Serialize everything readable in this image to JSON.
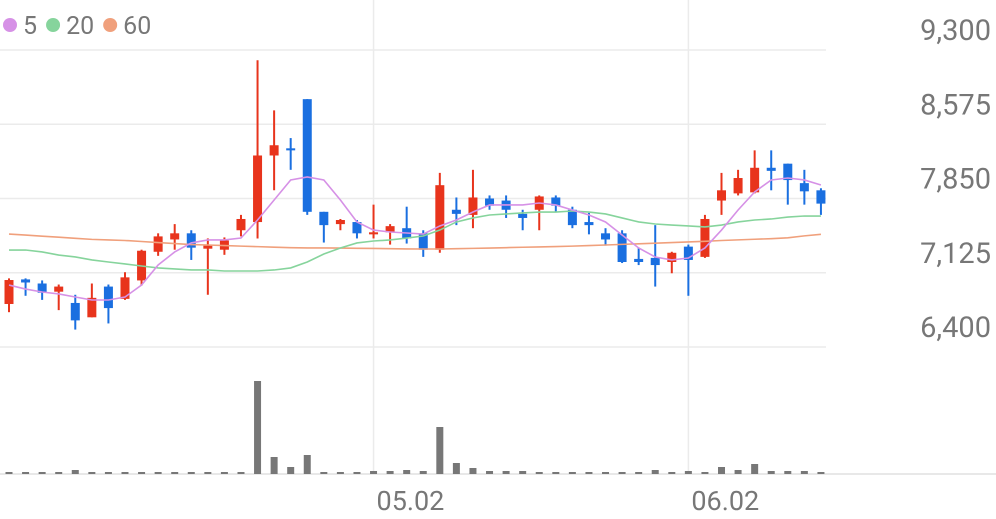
{
  "chart_data": {
    "type": "candlestick",
    "categories": [
      null,
      null,
      null,
      null,
      null,
      null,
      null,
      null,
      null,
      null,
      null,
      null,
      null,
      null,
      null,
      null,
      null,
      null,
      null,
      null,
      null,
      null,
      "05.02",
      null,
      null,
      null,
      null,
      null,
      null,
      null,
      null,
      null,
      null,
      null,
      null,
      null,
      null,
      null,
      null,
      null,
      null,
      "06.02",
      null,
      null,
      null,
      null,
      null,
      null,
      null,
      null
    ],
    "open": [
      6820,
      7060,
      7020,
      6940,
      6830,
      6690,
      6990,
      6870,
      7050,
      7330,
      7450,
      7510,
      7360,
      7350,
      7540,
      7620,
      8270,
      8340,
      8820,
      7720,
      7600,
      7620,
      7500,
      7520,
      7560,
      7510,
      7350,
      7740,
      7690,
      7850,
      7830,
      7700,
      7740,
      7860,
      7740,
      7620,
      7510,
      7510,
      7260,
      7270,
      7230,
      7380,
      7280,
      7830,
      7900,
      7910,
      8150,
      8190,
      8000,
      7930
    ],
    "high": [
      7070,
      7070,
      7050,
      7010,
      6910,
      7020,
      7010,
      7130,
      7350,
      7510,
      7600,
      7540,
      7460,
      7470,
      7690,
      9200,
      8710,
      8440,
      8820,
      7720,
      7650,
      7640,
      7790,
      7600,
      7770,
      7540,
      8100,
      7860,
      8130,
      7880,
      7880,
      7740,
      7880,
      7880,
      7770,
      7710,
      7560,
      7540,
      7370,
      7590,
      7330,
      7400,
      7690,
      8100,
      8130,
      8320,
      8320,
      8190,
      8130,
      7950
    ],
    "low": [
      6740,
      6900,
      6860,
      6760,
      6570,
      6690,
      6630,
      6860,
      7000,
      7290,
      7350,
      7250,
      6910,
      7300,
      7480,
      7460,
      7930,
      8130,
      7690,
      7420,
      7540,
      7460,
      7460,
      7400,
      7410,
      7280,
      7320,
      7590,
      7560,
      7740,
      7660,
      7540,
      7540,
      7720,
      7560,
      7500,
      7390,
      7220,
      7200,
      6990,
      7120,
      6900,
      7270,
      7690,
      7880,
      7900,
      7930,
      7790,
      7790,
      7690
    ],
    "close": [
      7054,
      7030,
      6930,
      6990,
      6660,
      6880,
      6780,
      7080,
      7340,
      7480,
      7510,
      7370,
      7390,
      7440,
      7650,
      8270,
      8370,
      8320,
      7720,
      7590,
      7640,
      7510,
      7520,
      7580,
      7460,
      7350,
      7980,
      7700,
      7860,
      7780,
      7740,
      7660,
      7870,
      7780,
      7590,
      7590,
      7450,
      7230,
      7230,
      7200,
      7320,
      7250,
      7650,
      7930,
      8050,
      8150,
      8120,
      8030,
      7920,
      7800
    ],
    "volume": [
      2,
      2,
      2,
      2,
      4,
      2,
      2,
      2,
      2,
      2,
      2,
      2,
      2,
      2,
      2,
      93,
      17,
      7,
      19,
      2,
      2,
      2,
      3,
      3,
      4,
      3,
      47,
      11,
      6,
      3,
      3,
      3,
      2,
      2,
      2,
      2,
      2,
      2,
      2,
      4,
      2,
      3,
      2,
      7,
      4,
      10,
      3,
      3,
      3,
      2
    ],
    "volume_lim": [
      0,
      100
    ],
    "up_color": "#e8341c",
    "down_color": "#1a6fe0",
    "volume_color": "#777777",
    "series": [
      {
        "name": "5",
        "color": "#d691e6",
        "values": [
          7005,
          6966,
          6937,
          6918,
          6888,
          6859,
          6859,
          6888,
          7005,
          7201,
          7328,
          7416,
          7445,
          7445,
          7464,
          7640,
          7835,
          8031,
          8060,
          8031,
          7835,
          7621,
          7542,
          7523,
          7513,
          7503,
          7582,
          7640,
          7718,
          7787,
          7787,
          7787,
          7806,
          7787,
          7738,
          7689,
          7621,
          7494,
          7367,
          7279,
          7250,
          7269,
          7367,
          7542,
          7738,
          7914,
          8031,
          8050,
          8031,
          7982
        ]
      },
      {
        "name": "20",
        "color": "#86d49c",
        "values": [
          7347,
          7347,
          7328,
          7298,
          7279,
          7250,
          7230,
          7211,
          7191,
          7172,
          7162,
          7152,
          7152,
          7142,
          7142,
          7142,
          7152,
          7172,
          7230,
          7308,
          7367,
          7416,
          7435,
          7445,
          7464,
          7484,
          7542,
          7621,
          7660,
          7689,
          7699,
          7709,
          7718,
          7718,
          7728,
          7718,
          7699,
          7660,
          7621,
          7601,
          7591,
          7582,
          7572,
          7591,
          7621,
          7640,
          7650,
          7669,
          7679,
          7679
        ]
      },
      {
        "name": "60",
        "color": "#f0a07c",
        "values": [
          7503,
          7493,
          7482,
          7472,
          7461,
          7451,
          7445,
          7440,
          7430,
          7420,
          7410,
          7400,
          7396,
          7390,
          7385,
          7380,
          7375,
          7370,
          7367,
          7367,
          7366,
          7364,
          7362,
          7360,
          7358,
          7357,
          7357,
          7360,
          7363,
          7366,
          7370,
          7374,
          7377,
          7381,
          7385,
          7390,
          7396,
          7402,
          7408,
          7414,
          7420,
          7426,
          7432,
          7440,
          7446,
          7452,
          7458,
          7466,
          7485,
          7500
        ]
      }
    ],
    "ylim": [
      6400,
      9300
    ],
    "yticks": [
      {
        "value": 6400,
        "label": "6,400"
      },
      {
        "value": 7125,
        "label": "7,125"
      },
      {
        "value": 7850,
        "label": "7,850"
      },
      {
        "value": 8575,
        "label": "8,575"
      },
      {
        "value": 9300,
        "label": "9,300"
      }
    ],
    "grid": true
  }
}
